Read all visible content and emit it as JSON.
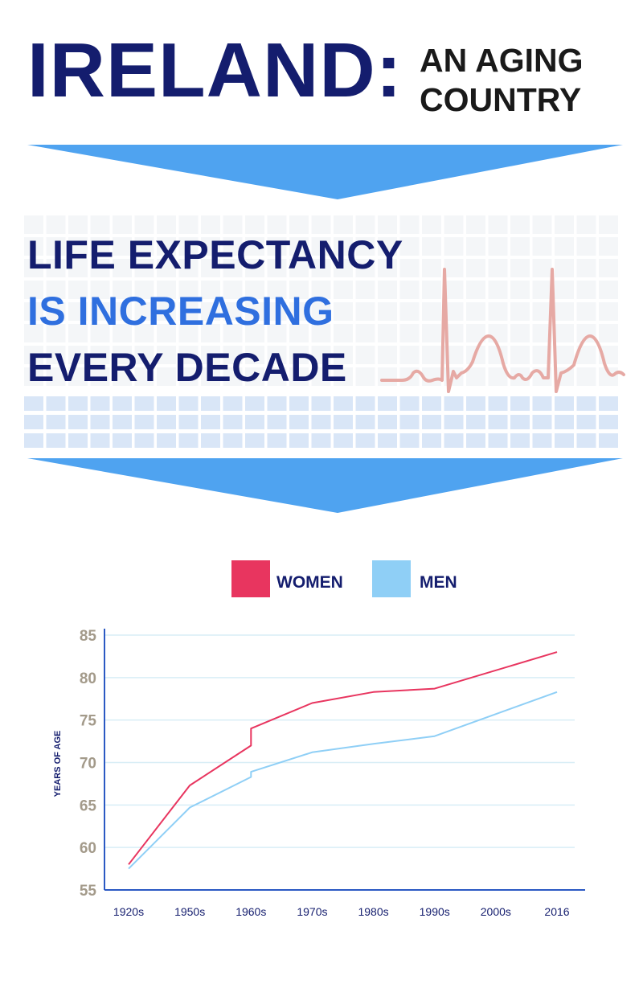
{
  "header": {
    "title": "IRELAND:",
    "subtitle_line1": "AN AGING",
    "subtitle_line2": "COUNTRY"
  },
  "headline": {
    "line1": "LIFE EXPECTANCY",
    "line2": "IS INCREASING",
    "line3": "EVERY DECADE"
  },
  "colors": {
    "navy": "#141d6e",
    "accent_blue": "#2f6fdf",
    "banner_blue": "#4fa3f0",
    "women": "#e8355f",
    "men": "#8fcff6",
    "heartbeat": "#e6a9a4",
    "axis_tick_text": "#a39a8a"
  },
  "chart_data": {
    "type": "line",
    "categories": [
      "1920s",
      "1950s",
      "1960s",
      "1970s",
      "1980s",
      "1990s",
      "2000s",
      "2016"
    ],
    "series": [
      {
        "name": "WOMEN",
        "color": "#e8355f",
        "x": [
          "1920s",
          "1950s",
          "1960s",
          "1965",
          "1975",
          "1985",
          "1990s",
          "2016"
        ],
        "values": [
          58,
          67.3,
          72,
          74,
          77,
          78.3,
          78.7,
          83
        ]
      },
      {
        "name": "MEN",
        "color": "#8fcff6",
        "x": [
          "1920s",
          "1950s",
          "1960s",
          "1965",
          "1975",
          "1985",
          "1990s",
          "2016"
        ],
        "values": [
          57.5,
          64.7,
          68.3,
          68.9,
          71.2,
          72.2,
          73.1,
          78.3
        ]
      }
    ],
    "title": "",
    "xlabel": "",
    "ylabel": "YEARS OF AGE",
    "ylim": [
      55,
      85
    ],
    "yticks": [
      55,
      60,
      65,
      70,
      75,
      80,
      85
    ],
    "grid": true,
    "legend_position": "top"
  }
}
